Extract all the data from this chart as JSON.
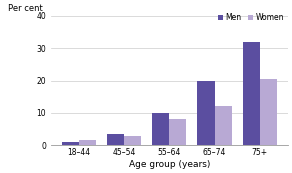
{
  "categories": [
    "18–44",
    "45–54",
    "55–64",
    "65–74",
    "75+"
  ],
  "men_values": [
    1.0,
    3.5,
    10.0,
    20.0,
    32.0
  ],
  "women_values": [
    1.5,
    3.0,
    8.0,
    12.0,
    20.5
  ],
  "men_color": "#5b4ea0",
  "women_color": "#b8a9d4",
  "ylabel": "Per cent",
  "xlabel": "Age group (years)",
  "ylim": [
    0,
    40
  ],
  "yticks": [
    0,
    10,
    20,
    30,
    40
  ],
  "legend_labels": [
    "Men",
    "Women"
  ],
  "bar_width": 0.38,
  "background_color": "#ffffff"
}
